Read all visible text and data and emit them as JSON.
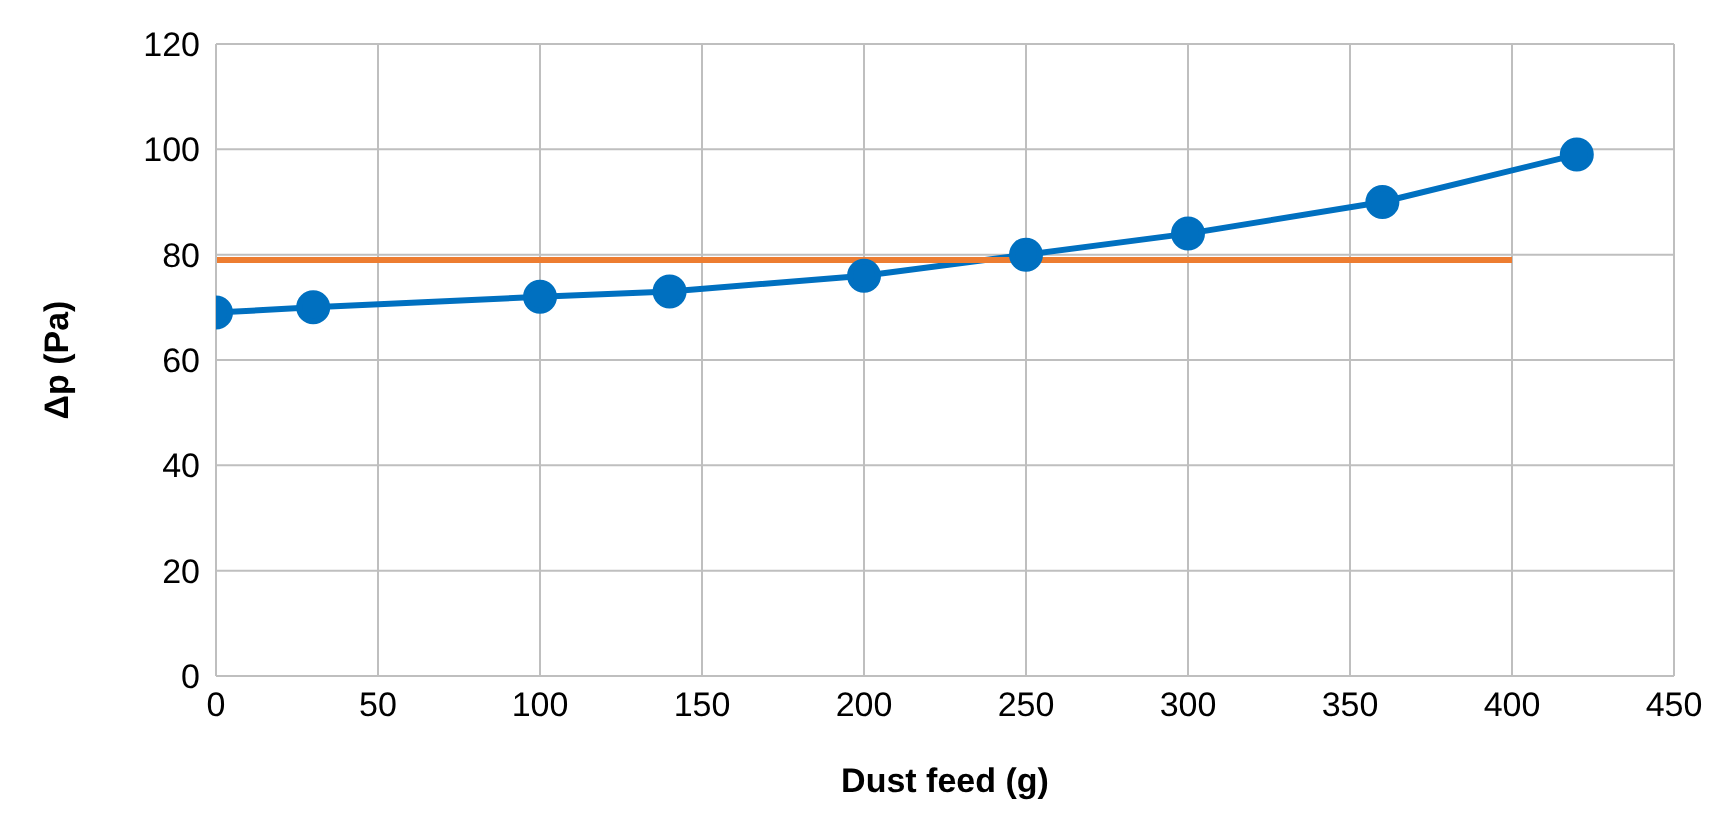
{
  "chart_data": {
    "type": "line",
    "xlabel": "Dust feed (g)",
    "ylabel": "Δp (Pa)",
    "xlim": [
      0,
      450
    ],
    "xticks": [
      0,
      50,
      100,
      150,
      200,
      250,
      300,
      350,
      400,
      450
    ],
    "ylim": [
      0,
      120
    ],
    "yticks": [
      0,
      20,
      40,
      60,
      80,
      100,
      120
    ],
    "grid": true,
    "legend": false,
    "series": [
      {
        "color": "#0070c0",
        "marker": "circle",
        "x": [
          0,
          30,
          100,
          140,
          200,
          250,
          300,
          360,
          420
        ],
        "values": [
          69,
          70,
          72,
          73,
          76,
          80,
          84,
          90,
          99
        ]
      },
      {
        "color": "#ed7d31",
        "marker": "none",
        "x": [
          0,
          400
        ],
        "values": [
          79,
          79
        ]
      }
    ]
  }
}
